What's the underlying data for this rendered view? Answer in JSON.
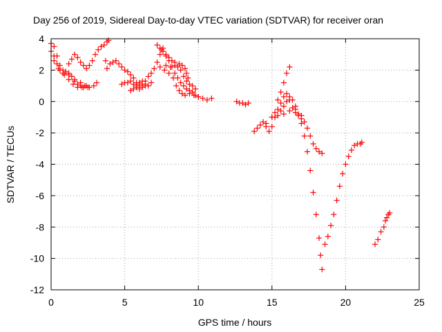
{
  "chart_data": {
    "type": "scatter",
    "title": "Day 256 of 2019, Sidereal Day-to-day VTEC variation (SDTVAR) for receiver oran",
    "xlabel": "GPS time / hours",
    "ylabel": "SDTVAR / TECUs",
    "xlim": [
      0,
      25
    ],
    "ylim": [
      -12,
      4
    ],
    "x_ticks": [
      0,
      5,
      10,
      15,
      20,
      25
    ],
    "y_ticks": [
      -12,
      -10,
      -8,
      -6,
      -4,
      -2,
      0,
      2,
      4
    ],
    "grid": true,
    "marker": "+",
    "color": "#ff0000",
    "series": [
      {
        "points": [
          [
            0.0,
            3.7
          ],
          [
            0.2,
            3.5
          ],
          [
            0.4,
            2.9
          ],
          [
            0.6,
            2.3
          ],
          [
            0.8,
            2.0
          ],
          [
            1.0,
            1.9
          ],
          [
            1.2,
            1.8
          ],
          [
            1.4,
            1.6
          ],
          [
            1.6,
            1.3
          ],
          [
            1.8,
            1.1
          ],
          [
            2.0,
            1.0
          ],
          [
            2.2,
            0.9
          ],
          [
            2.5,
            0.9
          ],
          [
            0.0,
            3.2
          ],
          [
            0.2,
            2.9
          ],
          [
            0.4,
            2.4
          ],
          [
            0.6,
            2.0
          ],
          [
            0.9,
            1.7
          ],
          [
            1.2,
            1.4
          ],
          [
            1.5,
            1.1
          ],
          [
            1.8,
            0.9
          ],
          [
            2.1,
            0.9
          ],
          [
            2.4,
            1.0
          ],
          [
            0.2,
            2.6
          ],
          [
            0.5,
            2.1
          ],
          [
            0.8,
            1.8
          ],
          [
            1.2,
            1.7
          ],
          [
            1.6,
            1.4
          ],
          [
            2.0,
            1.2
          ],
          [
            2.3,
            1.0
          ],
          [
            2.6,
            0.9
          ],
          [
            2.9,
            1.0
          ],
          [
            3.1,
            1.2
          ]
        ]
      },
      {
        "points": [
          [
            1.2,
            2.4
          ],
          [
            1.4,
            2.7
          ],
          [
            1.6,
            3.0
          ],
          [
            1.8,
            2.8
          ],
          [
            2.0,
            2.5
          ],
          [
            2.2,
            2.3
          ],
          [
            2.4,
            2.1
          ],
          [
            2.6,
            2.3
          ],
          [
            2.8,
            2.6
          ],
          [
            3.0,
            3.0
          ],
          [
            3.2,
            3.3
          ],
          [
            3.4,
            3.5
          ],
          [
            3.6,
            3.6
          ],
          [
            3.8,
            3.8
          ],
          [
            3.9,
            3.9
          ]
        ]
      },
      {
        "points": [
          [
            3.7,
            2.6
          ],
          [
            3.8,
            2.1
          ],
          [
            4.0,
            2.4
          ],
          [
            4.2,
            2.5
          ],
          [
            4.4,
            2.6
          ],
          [
            4.6,
            2.4
          ],
          [
            4.8,
            2.2
          ],
          [
            5.0,
            2.0
          ],
          [
            5.2,
            1.9
          ],
          [
            5.4,
            1.7
          ],
          [
            5.6,
            1.5
          ],
          [
            5.8,
            1.2
          ],
          [
            6.0,
            1.1
          ],
          [
            6.2,
            0.9
          ],
          [
            6.4,
            1.0
          ]
        ]
      },
      {
        "points": [
          [
            4.8,
            1.1
          ],
          [
            5.0,
            1.2
          ],
          [
            5.2,
            1.2
          ],
          [
            5.4,
            1.3
          ],
          [
            5.6,
            1.1
          ],
          [
            5.8,
            0.9
          ],
          [
            6.0,
            0.8
          ],
          [
            6.2,
            1.0
          ],
          [
            6.4,
            1.3
          ],
          [
            6.6,
            1.6
          ],
          [
            6.8,
            1.8
          ],
          [
            7.0,
            2.1
          ],
          [
            7.2,
            2.5
          ],
          [
            7.4,
            3.0
          ],
          [
            7.6,
            3.4
          ],
          [
            5.4,
            0.7
          ],
          [
            5.6,
            0.8
          ],
          [
            5.8,
            1.0
          ],
          [
            6.0,
            1.2
          ],
          [
            6.2,
            1.3
          ],
          [
            6.4,
            1.1
          ],
          [
            6.6,
            1.0
          ],
          [
            6.8,
            1.2
          ]
        ]
      },
      {
        "points": [
          [
            7.2,
            3.6
          ],
          [
            7.4,
            3.4
          ],
          [
            7.6,
            3.2
          ],
          [
            7.8,
            2.9
          ],
          [
            8.0,
            2.6
          ],
          [
            8.2,
            2.2
          ],
          [
            8.4,
            1.8
          ],
          [
            8.6,
            1.5
          ],
          [
            8.8,
            1.2
          ],
          [
            9.0,
            1.0
          ],
          [
            9.2,
            0.8
          ],
          [
            9.4,
            0.7
          ],
          [
            9.6,
            0.6
          ],
          [
            9.8,
            0.4
          ],
          [
            10.0,
            0.3
          ],
          [
            10.3,
            0.2
          ],
          [
            10.6,
            0.1
          ],
          [
            10.9,
            0.2
          ],
          [
            7.5,
            3.3
          ],
          [
            7.8,
            3.0
          ],
          [
            8.0,
            2.8
          ],
          [
            8.2,
            2.6
          ],
          [
            8.4,
            2.5
          ],
          [
            8.6,
            2.2
          ],
          [
            8.8,
            2.0
          ],
          [
            9.0,
            1.6
          ],
          [
            9.2,
            1.3
          ],
          [
            9.4,
            1.1
          ],
          [
            9.6,
            1.0
          ],
          [
            9.8,
            0.8
          ],
          [
            7.4,
            2.2
          ],
          [
            7.7,
            2.0
          ],
          [
            8.0,
            1.8
          ],
          [
            8.3,
            1.5
          ],
          [
            8.5,
            1.0
          ],
          [
            8.7,
            0.7
          ],
          [
            8.9,
            0.5
          ],
          [
            9.1,
            0.4
          ],
          [
            9.4,
            0.5
          ],
          [
            9.7,
            0.4
          ],
          [
            10.0,
            0.3
          ],
          [
            7.8,
            2.3
          ],
          [
            8.1,
            2.2
          ],
          [
            8.4,
            2.3
          ],
          [
            8.7,
            2.4
          ],
          [
            8.9,
            2.3
          ],
          [
            9.1,
            2.1
          ],
          [
            9.2,
            1.8
          ],
          [
            9.3,
            1.5
          ]
        ]
      },
      {
        "points": [
          [
            12.6,
            0.0
          ],
          [
            12.8,
            -0.1
          ],
          [
            13.0,
            -0.1
          ],
          [
            13.2,
            -0.2
          ],
          [
            13.4,
            -0.1
          ]
        ]
      },
      {
        "points": [
          [
            13.8,
            -1.9
          ],
          [
            14.0,
            -1.7
          ],
          [
            14.2,
            -1.5
          ],
          [
            14.4,
            -1.3
          ],
          [
            14.6,
            -1.6
          ],
          [
            14.8,
            -1.9
          ],
          [
            15.0,
            -1.6
          ],
          [
            15.2,
            -1.0
          ],
          [
            15.4,
            -0.5
          ],
          [
            15.6,
            -0.1
          ],
          [
            15.8,
            0.3
          ],
          [
            16.0,
            0.5
          ],
          [
            16.2,
            0.3
          ],
          [
            16.4,
            0.1
          ],
          [
            16.6,
            -0.3
          ],
          [
            16.8,
            -0.8
          ],
          [
            17.0,
            -1.4
          ],
          [
            17.2,
            -2.2
          ],
          [
            17.4,
            -3.2
          ],
          [
            17.6,
            -4.4
          ],
          [
            17.8,
            -5.8
          ],
          [
            18.0,
            -7.2
          ],
          [
            18.2,
            -8.7
          ],
          [
            18.3,
            -9.8
          ],
          [
            18.4,
            -10.7
          ],
          [
            15.6,
            -0.6
          ],
          [
            15.8,
            -0.3
          ],
          [
            16.0,
            0.0
          ],
          [
            16.2,
            0.1
          ],
          [
            16.4,
            -0.4
          ],
          [
            16.6,
            -0.7
          ],
          [
            16.8,
            -0.9
          ],
          [
            17.0,
            -1.1
          ],
          [
            17.2,
            -1.3
          ],
          [
            17.4,
            -1.7
          ],
          [
            17.6,
            -2.2
          ],
          [
            17.8,
            -2.7
          ],
          [
            18.0,
            -3.0
          ],
          [
            18.2,
            -3.2
          ],
          [
            18.4,
            -3.3
          ],
          [
            15.0,
            -1.0
          ],
          [
            15.2,
            -0.7
          ],
          [
            15.4,
            0.1
          ],
          [
            15.6,
            0.6
          ],
          [
            15.8,
            1.2
          ],
          [
            16.0,
            1.8
          ],
          [
            16.2,
            2.2
          ],
          [
            14.6,
            -1.4
          ],
          [
            15.0,
            -1.0
          ],
          [
            15.4,
            -0.9
          ],
          [
            15.8,
            -0.8
          ],
          [
            16.2,
            -0.6
          ],
          [
            16.6,
            -0.5
          ],
          [
            17.0,
            -0.9
          ]
        ]
      },
      {
        "points": [
          [
            18.6,
            -9.1
          ],
          [
            18.8,
            -8.6
          ],
          [
            19.0,
            -7.9
          ],
          [
            19.2,
            -7.2
          ],
          [
            19.4,
            -6.3
          ],
          [
            19.6,
            -5.4
          ],
          [
            19.8,
            -4.6
          ],
          [
            20.0,
            -4.0
          ],
          [
            20.2,
            -3.5
          ],
          [
            20.4,
            -3.1
          ],
          [
            20.6,
            -2.8
          ],
          [
            20.8,
            -2.7
          ],
          [
            21.0,
            -2.7
          ],
          [
            21.1,
            -2.6
          ]
        ]
      },
      {
        "points": [
          [
            22.0,
            -9.1
          ],
          [
            22.2,
            -8.8
          ],
          [
            22.4,
            -8.3
          ],
          [
            22.6,
            -8.0
          ],
          [
            22.7,
            -7.6
          ],
          [
            22.8,
            -7.4
          ],
          [
            22.9,
            -7.2
          ],
          [
            23.0,
            -7.1
          ]
        ]
      }
    ]
  }
}
